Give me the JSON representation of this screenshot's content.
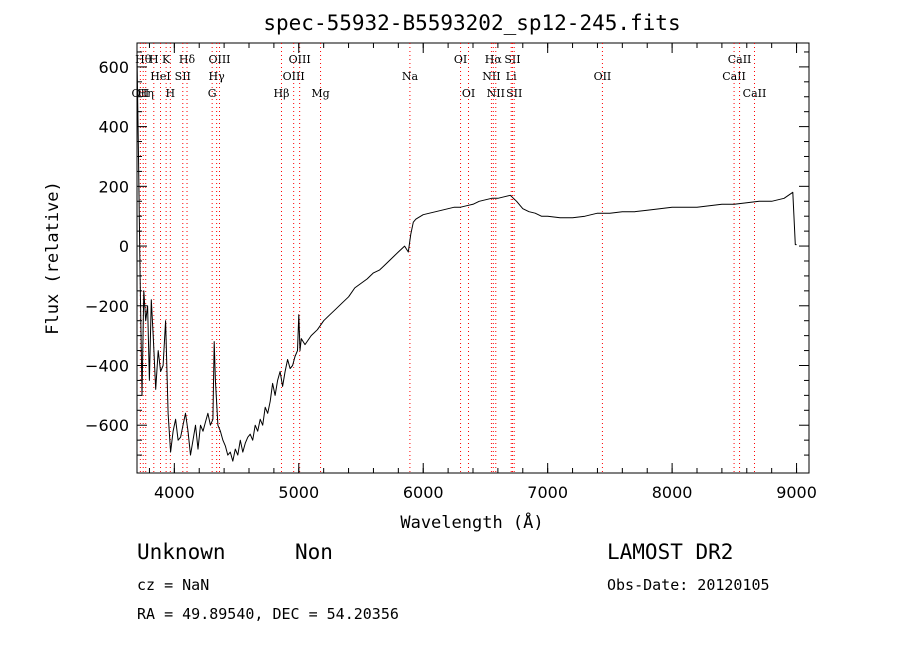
{
  "chart_data": {
    "type": "line",
    "title": "spec-55932-B5593202_sp12-245.fits",
    "xlabel": "Wavelength (Å)",
    "ylabel": "Flux (relative)",
    "xlim": [
      3700,
      9100
    ],
    "ylim": [
      -760,
      680
    ],
    "x_ticks": [
      4000,
      5000,
      6000,
      7000,
      8000,
      9000
    ],
    "y_ticks": [
      -600,
      -400,
      -200,
      0,
      200,
      400,
      600
    ],
    "grid": false,
    "line_color": "#000000",
    "marker_color": "#ff0000",
    "series": [
      {
        "x": [
          3700,
          3712,
          3725,
          3740,
          3755,
          3770,
          3785,
          3800,
          3815,
          3830,
          3850,
          3870,
          3890,
          3910,
          3930,
          3950,
          3970,
          3990,
          4010,
          4030,
          4050,
          4070,
          4090,
          4110,
          4130,
          4150,
          4170,
          4190,
          4210,
          4230,
          4250,
          4270,
          4290,
          4310,
          4320,
          4330,
          4350,
          4370,
          4390,
          4410,
          4430,
          4450,
          4470,
          4490,
          4510,
          4530,
          4550,
          4570,
          4590,
          4610,
          4630,
          4650,
          4670,
          4690,
          4710,
          4730,
          4750,
          4770,
          4790,
          4810,
          4830,
          4850,
          4870,
          4890,
          4910,
          4930,
          4950,
          4970,
          4990,
          5000,
          5010,
          5020,
          5050,
          5100,
          5150,
          5200,
          5250,
          5300,
          5350,
          5400,
          5450,
          5500,
          5550,
          5600,
          5650,
          5700,
          5750,
          5800,
          5850,
          5880,
          5900,
          5920,
          5940,
          5960,
          5980,
          6000,
          6050,
          6100,
          6150,
          6200,
          6250,
          6300,
          6350,
          6400,
          6450,
          6500,
          6550,
          6600,
          6650,
          6700,
          6750,
          6800,
          6850,
          6900,
          6950,
          7000,
          7100,
          7200,
          7300,
          7400,
          7500,
          7600,
          7700,
          7800,
          7900,
          8000,
          8100,
          8200,
          8300,
          8400,
          8500,
          8600,
          8700,
          8800,
          8900,
          8970,
          8990,
          9000
        ],
        "y": [
          640,
          300,
          -100,
          -500,
          -150,
          -250,
          -200,
          -450,
          -180,
          -300,
          -480,
          -350,
          -420,
          -400,
          -250,
          -560,
          -690,
          -620,
          -580,
          -650,
          -640,
          -600,
          -560,
          -620,
          -700,
          -650,
          -600,
          -680,
          -600,
          -620,
          -590,
          -560,
          -600,
          -580,
          -320,
          -450,
          -600,
          -620,
          -650,
          -670,
          -700,
          -690,
          -720,
          -680,
          -700,
          -650,
          -690,
          -660,
          -640,
          -630,
          -650,
          -600,
          -620,
          -580,
          -600,
          -540,
          -560,
          -520,
          -460,
          -500,
          -450,
          -420,
          -470,
          -420,
          -380,
          -410,
          -400,
          -370,
          -350,
          -230,
          -350,
          -310,
          -330,
          -300,
          -280,
          -250,
          -230,
          -210,
          -190,
          -170,
          -140,
          -125,
          -110,
          -90,
          -80,
          -60,
          -40,
          -20,
          0,
          -20,
          40,
          80,
          90,
          95,
          100,
          105,
          110,
          115,
          120,
          125,
          130,
          130,
          135,
          140,
          150,
          155,
          160,
          160,
          165,
          170,
          150,
          125,
          115,
          110,
          100,
          100,
          95,
          95,
          100,
          110,
          110,
          115,
          115,
          120,
          125,
          130,
          130,
          130,
          135,
          140,
          140,
          145,
          150,
          150,
          160,
          180,
          5,
          5
        ]
      }
    ],
    "line_markers": [
      {
        "x": 3727,
        "label": "OII",
        "row": 3
      },
      {
        "x": 3750,
        "label": "Hθ",
        "row": 1
      },
      {
        "x": 3770,
        "label": "Hη",
        "row": 3
      },
      {
        "x": 3835,
        "label": "H",
        "row": 1
      },
      {
        "x": 3889,
        "label": "HeI",
        "row": 2
      },
      {
        "x": 3934,
        "label": "K",
        "row": 1
      },
      {
        "x": 3968,
        "label": "H",
        "row": 3
      },
      {
        "x": 4068,
        "label": "SII",
        "row": 2
      },
      {
        "x": 4102,
        "label": "Hδ",
        "row": 1
      },
      {
        "x": 4304,
        "label": "G",
        "row": 3
      },
      {
        "x": 4340,
        "label": "Hγ",
        "row": 2
      },
      {
        "x": 4363,
        "label": "OIII",
        "row": 1
      },
      {
        "x": 4861,
        "label": "Hβ",
        "row": 3
      },
      {
        "x": 4959,
        "label": "OIII",
        "row": 2
      },
      {
        "x": 5007,
        "label": "OIII",
        "row": 1
      },
      {
        "x": 5175,
        "label": "Mg",
        "row": 3
      },
      {
        "x": 5893,
        "label": "Na",
        "row": 2
      },
      {
        "x": 6300,
        "label": "OI",
        "row": 1
      },
      {
        "x": 6364,
        "label": "OI",
        "row": 3
      },
      {
        "x": 6548,
        "label": "NII",
        "row": 2
      },
      {
        "x": 6563,
        "label": "Hα",
        "row": 1
      },
      {
        "x": 6583,
        "label": "NII",
        "row": 3
      },
      {
        "x": 6707,
        "label": "Li",
        "row": 2
      },
      {
        "x": 6717,
        "label": "SII",
        "row": 1
      },
      {
        "x": 6731,
        "label": "SII",
        "row": 3
      },
      {
        "x": 7440,
        "label": "OII",
        "row": 2
      },
      {
        "x": 8498,
        "label": "CaII",
        "row": 2
      },
      {
        "x": 8542,
        "label": "CaII",
        "row": 1
      },
      {
        "x": 8662,
        "label": "CaII",
        "row": 3
      }
    ]
  },
  "info": {
    "class_label": "Unknown",
    "subclass_label": "Non",
    "survey": "LAMOST DR2",
    "cz": "cz = NaN",
    "obs_date": "Obs-Date: 20120105",
    "coords": "RA =  49.89540, DEC =  54.20356"
  }
}
